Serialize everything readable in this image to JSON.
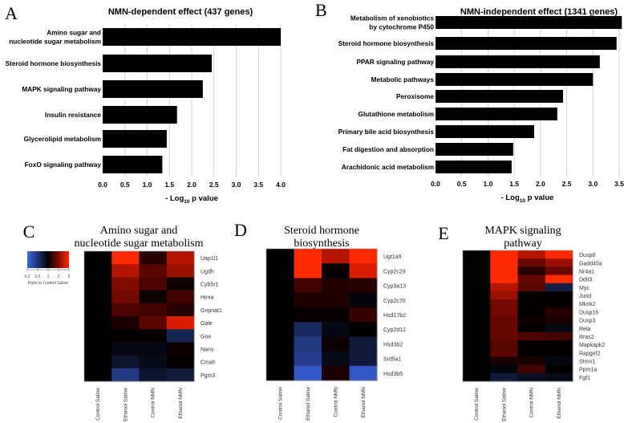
{
  "chart_data": [
    {
      "panel": "A",
      "type": "bar",
      "orientation": "horizontal",
      "title": "NMN-dependent effect (437 genes)",
      "xlabel_prefix": "- Log",
      "xlabel_sub": "10",
      "xlabel_suffix": " p value",
      "xlim": [
        0,
        4.0
      ],
      "xticks": [
        "0.0",
        "0.5",
        "1.0",
        "1.5",
        "2.0",
        "2.5",
        "3.0",
        "3.5",
        "4.0"
      ],
      "grid": true,
      "categories": [
        [
          "Amino sugar and",
          "nucleotide sugar metabolism"
        ],
        [
          "Steroid hormone biosynthesis"
        ],
        [
          "MAPK signaling pathway"
        ],
        [
          "Insulin resistance"
        ],
        [
          "Glycerolipid metabolism"
        ],
        [
          "FoxO signaling pathway"
        ]
      ],
      "values": [
        4.0,
        2.45,
        2.25,
        1.67,
        1.44,
        1.34
      ]
    },
    {
      "panel": "B",
      "type": "bar",
      "orientation": "horizontal",
      "title": "NMN-independent effect (1341 genes)",
      "xlabel_prefix": "- Log",
      "xlabel_sub": "10",
      "xlabel_suffix": " p value",
      "xlim": [
        0,
        3.5
      ],
      "xticks": [
        "0.0",
        "0.5",
        "1.0",
        "1.5",
        "2.0",
        "2.5",
        "3.0",
        "3.5"
      ],
      "grid": true,
      "categories": [
        [
          "Metabolism of xenobiotics",
          "by cytochrome P450"
        ],
        [
          "Steroid hormone biosynthesis"
        ],
        [
          "PPAR signaling pathway"
        ],
        [
          "Metabolic pathways"
        ],
        [
          "Peroxisome"
        ],
        [
          "Glutathione metabolism"
        ],
        [
          "Primary bile acid biosynthesis"
        ],
        [
          "Fat digestion and absorption"
        ],
        [
          "Arachidonic acid metabolism"
        ]
      ],
      "values": [
        3.55,
        3.45,
        3.13,
        3.0,
        2.43,
        2.32,
        1.88,
        1.48,
        1.45
      ]
    },
    {
      "panel": "C",
      "type": "heatmap",
      "title": [
        "Amino sugar and",
        "nucleotide sugar metabolism"
      ],
      "value_scale": "log5 ratio to Control Saline (-1 = 0.2, 0 = 1, 1 = 5)",
      "columns": [
        "Control Saline",
        "Ethanol Saline",
        "Control NMN",
        "Ethanol NMN"
      ],
      "rows": [
        "Uap1l1",
        "Ugdh",
        "Cyb5r1",
        "Hexa",
        "Gnpnat1",
        "Gale",
        "Gne",
        "Nans",
        "Cmah",
        "Pgm3"
      ],
      "values": [
        [
          0,
          1,
          0.15,
          0.7
        ],
        [
          0,
          0.7,
          0.35,
          0.6
        ],
        [
          0,
          0.5,
          0.3,
          0.05
        ],
        [
          0,
          0.45,
          0.05,
          0.25
        ],
        [
          0,
          0.3,
          0.25,
          0.15
        ],
        [
          0,
          0.1,
          0.35,
          0.85
        ],
        [
          0,
          0.02,
          0.02,
          -0.35
        ],
        [
          0,
          -0.08,
          -0.08,
          0.05
        ],
        [
          0,
          -0.2,
          -0.1,
          0.02
        ],
        [
          0,
          -0.55,
          -0.2,
          -0.25
        ]
      ],
      "legend": {
        "ticks": [
          "0.2",
          "0.5",
          "1",
          "2",
          "5"
        ],
        "label": "Ratio to Control Saline"
      }
    },
    {
      "panel": "D",
      "type": "heatmap",
      "title": [
        "Steroid hormone",
        "biosynthesis"
      ],
      "columns": [
        "Control Saline",
        "Ethanol Saline",
        "Control NMN",
        "Ethanol NMN"
      ],
      "rows": [
        "Ugt1a9",
        "Cyp2c29",
        "Cyp3a13",
        "Cyp2c70",
        "Hsd17b2",
        "Cyp2d12",
        "Hsd3b2",
        "Srd5a1",
        "Hsd3b5"
      ],
      "values": [
        [
          0,
          1,
          0.7,
          1
        ],
        [
          0,
          1,
          0.03,
          0.85
        ],
        [
          0,
          0.25,
          0.12,
          0.15
        ],
        [
          0,
          0.12,
          0.12,
          -0.05
        ],
        [
          0,
          0.03,
          0.03,
          0.2
        ],
        [
          0,
          -0.4,
          -0.08,
          0.02
        ],
        [
          0,
          -0.55,
          0.05,
          -0.25
        ],
        [
          0,
          -0.6,
          -0.1,
          -0.25
        ],
        [
          0,
          -0.85,
          0.1,
          -0.85
        ]
      ]
    },
    {
      "panel": "E",
      "type": "heatmap",
      "title": [
        "MAPK signaling",
        "pathway"
      ],
      "columns": [
        "Control Saline",
        "Ethanol Saline",
        "Control NMN",
        "Ethanol NMN"
      ],
      "rows": [
        "Dusp8",
        "Gadd45a",
        "Nr4a1",
        "Ddit3",
        "Myc",
        "Jund",
        "Mknk2",
        "Dusp16",
        "Dusp3",
        "Rela",
        "Rras2",
        "Mapkapk2",
        "Rapgef2",
        "Stmn1",
        "Ppm1a",
        "Fgf1"
      ],
      "values": [
        [
          0,
          1,
          0.7,
          1
        ],
        [
          0,
          1,
          0.4,
          0.6
        ],
        [
          0,
          1,
          0.15,
          0.4
        ],
        [
          0,
          1,
          0.4,
          1
        ],
        [
          0,
          0.7,
          0.35,
          -0.3
        ],
        [
          0,
          0.6,
          0.02,
          0.02
        ],
        [
          0,
          0.45,
          0.02,
          0.02
        ],
        [
          0,
          0.45,
          0.02,
          0.15
        ],
        [
          0,
          0.4,
          0.05,
          0.1
        ],
        [
          0,
          0.4,
          0.02,
          -0.08
        ],
        [
          0,
          0.4,
          0.3,
          0.25
        ],
        [
          0,
          0.35,
          0.02,
          0.02
        ],
        [
          0,
          0.35,
          0.02,
          0.02
        ],
        [
          0,
          0.1,
          0.1,
          -0.08
        ],
        [
          0,
          -0.05,
          0.25,
          0.02
        ],
        [
          0,
          -0.25,
          -0.15,
          -0.1
        ]
      ]
    }
  ],
  "colors": {
    "bar": "#000000",
    "grid": "#c8c8c8",
    "high": "#ff2a00",
    "mid": "#000000",
    "low": "#3d66e8"
  }
}
